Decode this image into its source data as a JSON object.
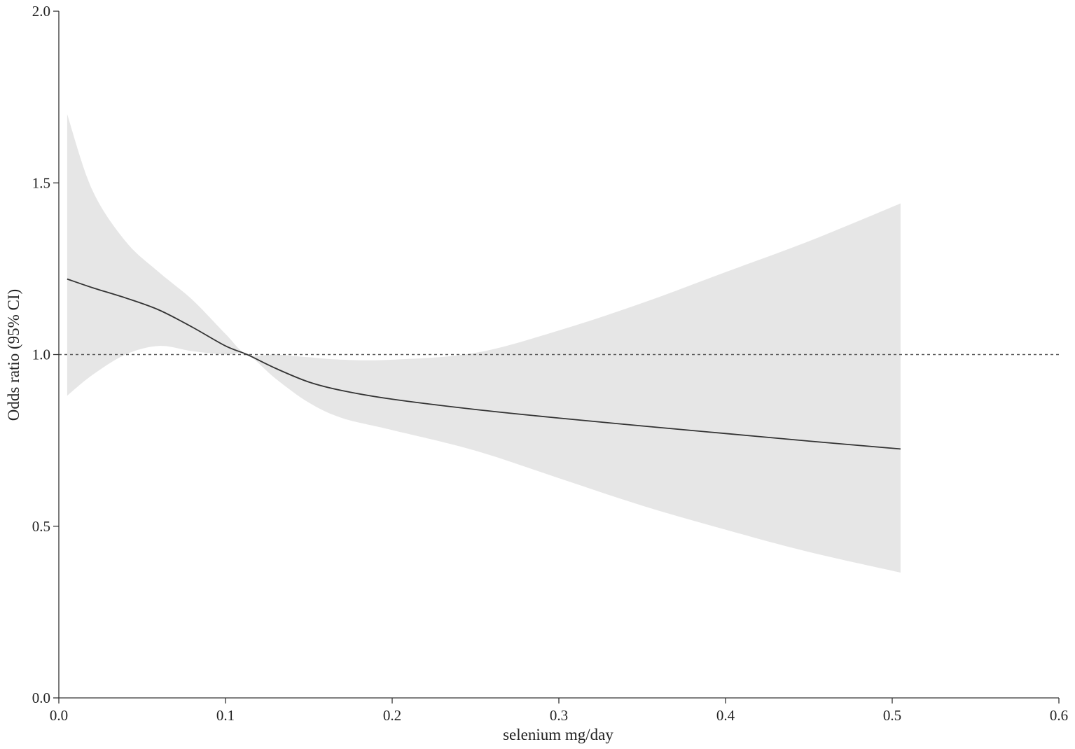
{
  "chart_data": {
    "type": "line",
    "title": "",
    "xlabel": "selenium mg/day",
    "ylabel": "Odds ratio (95% CI)",
    "xlim": [
      0.0,
      0.6
    ],
    "ylim": [
      0.0,
      2.0
    ],
    "x_ticks": [
      "0.0",
      "0.1",
      "0.2",
      "0.3",
      "0.4",
      "0.5",
      "0.6"
    ],
    "y_ticks": [
      "0.0",
      "0.5",
      "1.0",
      "1.5",
      "2.0"
    ],
    "grid": false,
    "legend": "none",
    "reference_line": {
      "y": 1.0,
      "style": "dashed"
    },
    "colors": {
      "line": "#333333",
      "band": "#e6e6e6",
      "axis": "#333333",
      "reference": "#555555"
    },
    "series": [
      {
        "x": [
          0.005,
          0.02,
          0.04,
          0.06,
          0.08,
          0.1,
          0.113,
          0.13,
          0.15,
          0.17,
          0.2,
          0.25,
          0.3,
          0.35,
          0.4,
          0.45,
          0.505
        ],
        "y": [
          1.22,
          1.195,
          1.165,
          1.13,
          1.08,
          1.025,
          1.0,
          0.96,
          0.92,
          0.895,
          0.87,
          0.84,
          0.815,
          0.792,
          0.77,
          0.748,
          0.725
        ],
        "lower": [
          0.88,
          0.94,
          1.0,
          1.025,
          1.01,
          1.0,
          1.0,
          0.93,
          0.86,
          0.815,
          0.78,
          0.72,
          0.64,
          0.56,
          0.49,
          0.425,
          0.365
        ],
        "upper": [
          1.7,
          1.48,
          1.33,
          1.24,
          1.16,
          1.06,
          1.0,
          1.0,
          0.992,
          0.985,
          0.985,
          1.005,
          1.07,
          1.15,
          1.24,
          1.33,
          1.44
        ]
      }
    ]
  }
}
